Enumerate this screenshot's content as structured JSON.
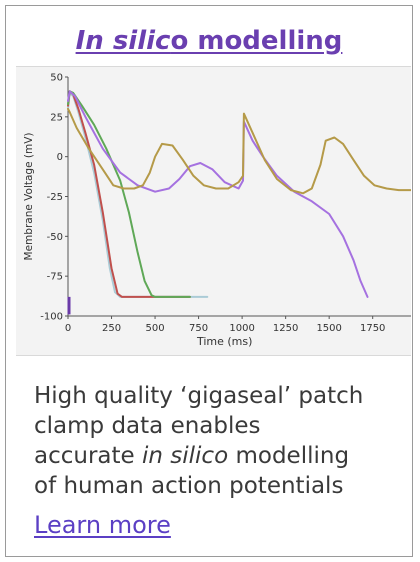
{
  "card": {
    "title_italic": "In silic",
    "title_rest": "o modelling",
    "caption": {
      "line1": "High quality ‘gigaseal’ patch",
      "line2": "clamp data enables",
      "line3_pre": "accurate ",
      "line3_em": "in silico",
      "line3_post": " modelling",
      "line4": "of human action potentials"
    },
    "link_label": "Learn more",
    "accent_color": "#6a3fb0"
  },
  "chart_data": {
    "type": "line",
    "xlabel": "Time (ms)",
    "ylabel": "Membrane Voltage (mV)",
    "xlim": [
      0,
      1970
    ],
    "ylim": [
      -100,
      50
    ],
    "x_ticks": [
      "0",
      "250",
      "500",
      "750",
      "1000",
      "1250",
      "1500",
      "1750"
    ],
    "y_ticks": [
      "50",
      "25",
      "0",
      "-25",
      "-50",
      "-75",
      "-100"
    ],
    "series": [
      {
        "color": "#aacbd6",
        "x": [
          0,
          10,
          30,
          60,
          100,
          150,
          200,
          240,
          270,
          300,
          350,
          500,
          700,
          800
        ],
        "y": [
          30,
          40,
          38,
          28,
          12,
          -10,
          -40,
          -70,
          -85,
          -88,
          -88,
          -88,
          -88,
          -88
        ]
      },
      {
        "color": "#c0504d",
        "x": [
          0,
          10,
          30,
          60,
          100,
          150,
          200,
          250,
          285,
          310,
          350,
          500,
          700
        ],
        "y": [
          32,
          41,
          39,
          30,
          15,
          -5,
          -35,
          -70,
          -86,
          -88,
          -88,
          -88,
          -88
        ]
      },
      {
        "color": "#5fa857",
        "x": [
          0,
          10,
          30,
          80,
          150,
          220,
          300,
          350,
          400,
          440,
          480,
          500,
          700
        ],
        "y": [
          33,
          41,
          40,
          32,
          20,
          5,
          -15,
          -35,
          -60,
          -78,
          -87,
          -88,
          -88
        ]
      },
      {
        "color": "#a571e0",
        "x": [
          0,
          10,
          40,
          100,
          200,
          300,
          400,
          500,
          580,
          640,
          700,
          760,
          830,
          900,
          980,
          1005,
          1010,
          1060,
          1120,
          1200,
          1300,
          1400,
          1500,
          1580,
          1640,
          1680,
          1720
        ],
        "y": [
          35,
          41,
          38,
          25,
          5,
          -10,
          -18,
          -22,
          -20,
          -14,
          -6,
          -4,
          -8,
          -16,
          -20,
          -15,
          22,
          10,
          0,
          -12,
          -22,
          -28,
          -36,
          -50,
          -65,
          -78,
          -88
        ]
      },
      {
        "color": "#b59a48",
        "x": [
          0,
          10,
          50,
          120,
          200,
          260,
          320,
          380,
          430,
          470,
          500,
          540,
          600,
          660,
          720,
          780,
          850,
          920,
          980,
          1005,
          1010,
          1060,
          1130,
          1200,
          1280,
          1350,
          1400,
          1450,
          1480,
          1530,
          1580,
          1640,
          1700,
          1760,
          1830,
          1900,
          1970
        ],
        "y": [
          30,
          28,
          18,
          5,
          -8,
          -18,
          -20,
          -20,
          -18,
          -10,
          0,
          8,
          7,
          -2,
          -12,
          -18,
          -20,
          -20,
          -16,
          -12,
          27,
          15,
          -2,
          -14,
          -21,
          -23,
          -20,
          -5,
          10,
          12,
          8,
          -2,
          -12,
          -18,
          -20,
          -21,
          -21
        ]
      }
    ],
    "grid": false,
    "legend": "none"
  }
}
